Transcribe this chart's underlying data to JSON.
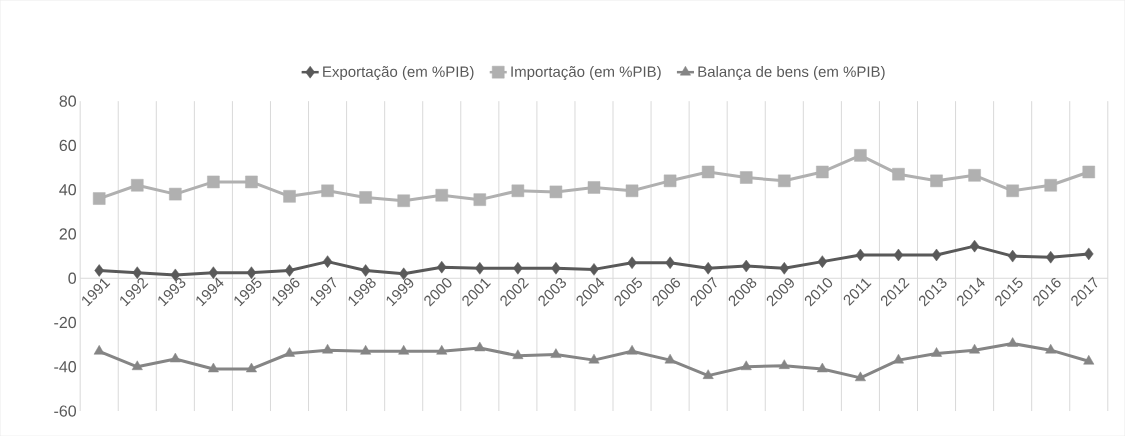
{
  "chart_data": {
    "type": "line",
    "categories": [
      "1991",
      "1992",
      "1993",
      "1994",
      "1995",
      "1996",
      "1997",
      "1998",
      "1999",
      "2000",
      "2001",
      "2002",
      "2003",
      "2004",
      "2005",
      "2006",
      "2007",
      "2008",
      "2009",
      "2010",
      "2011",
      "2012",
      "2013",
      "2014",
      "2015",
      "2016",
      "2017"
    ],
    "series": [
      {
        "name": "Exportação (em %PIB)",
        "color": "#595959",
        "marker": "diamond",
        "values": [
          3.5,
          2.5,
          1.5,
          2.5,
          2.5,
          3.5,
          7.5,
          3.5,
          2,
          5,
          4.5,
          4.5,
          4.5,
          4,
          7,
          7,
          4.5,
          5.5,
          4.5,
          7.5,
          10.5,
          10.5,
          10.5,
          14.5,
          10,
          9.5,
          11
        ]
      },
      {
        "name": "Importação (em %PIB)",
        "color": "#b0b0b0",
        "marker": "square",
        "values": [
          36,
          42,
          38,
          43.5,
          43.5,
          37,
          39.5,
          36.5,
          35,
          37.5,
          35.5,
          39.5,
          39,
          41,
          39.5,
          44,
          48,
          45.5,
          44,
          48,
          55.5,
          47,
          44,
          46.5,
          39.5,
          42,
          48
        ]
      },
      {
        "name": "Balança de bens (em %PIB)",
        "color": "#858585",
        "marker": "triangle",
        "values": [
          -33,
          -40,
          -36.5,
          -41,
          -41,
          -34,
          -32.5,
          -33,
          -33,
          -33,
          -31.5,
          -35,
          -34.5,
          -37,
          -33,
          -37,
          -44,
          -40,
          -39.5,
          -41,
          -45,
          -37,
          -34,
          -32.5,
          -29.5,
          -32.5,
          -37.5
        ]
      }
    ],
    "ylim": [
      -60,
      80
    ],
    "yticks": [
      -60,
      -40,
      -20,
      0,
      20,
      40,
      60,
      80
    ],
    "grid": "x",
    "legend": "top",
    "line_style": "solid"
  }
}
